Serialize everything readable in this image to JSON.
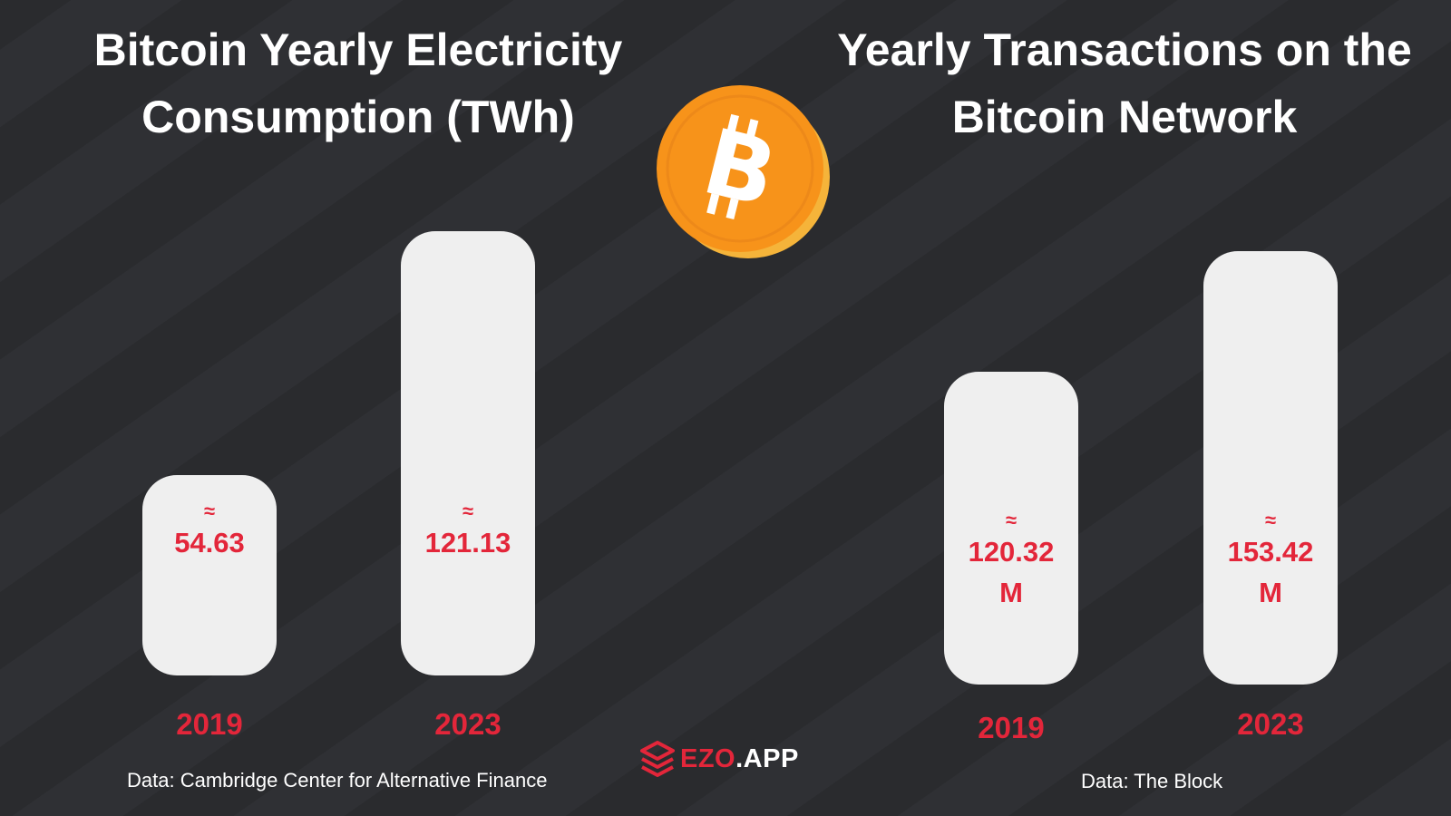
{
  "charts": {
    "left": {
      "title_line1": "Bitcoin Yearly Electricity",
      "title_line2": "Consumption (TWh)",
      "source": "Data: Cambridge Center for Alternative Finance",
      "approx_symbol": "≈",
      "bars": [
        {
          "year": "2019",
          "label": "54.63",
          "value": 54.63
        },
        {
          "year": "2023",
          "label": "121.13",
          "value": 121.13
        }
      ]
    },
    "right": {
      "title_line1": "Yearly Transactions on the",
      "title_line2": "Bitcoin Network",
      "source": "Data: The Block",
      "approx_symbol": "≈",
      "bars": [
        {
          "year": "2019",
          "label_line1": "120.32",
          "label_line2": "M",
          "value": 120.32
        },
        {
          "year": "2023",
          "label_line1": "153.42",
          "label_line2": "M",
          "value": 153.42
        }
      ]
    }
  },
  "logo": {
    "brand": "EZO",
    "tld": ".APP"
  },
  "colors": {
    "background": "#2b2c30",
    "accent_red": "#e3263a",
    "bar_fill": "#efefef",
    "coin_orange": "#f7931a",
    "coin_rim": "#f5b43a"
  },
  "icons": {
    "coin": "bitcoin-coin-icon",
    "logo": "ezo-logo-icon"
  },
  "chart_data": [
    {
      "type": "bar",
      "title": "Bitcoin Yearly Electricity Consumption (TWh)",
      "categories": [
        "2019",
        "2023"
      ],
      "values": [
        54.63,
        121.13
      ],
      "data_labels": [
        "≈ 54.63",
        "≈ 121.13"
      ],
      "xlabel": "",
      "ylabel": "",
      "grid": false,
      "source": "Data: Cambridge Center for Alternative Finance"
    },
    {
      "type": "bar",
      "title": "Yearly Transactions on the Bitcoin Network",
      "categories": [
        "2019",
        "2023"
      ],
      "values": [
        120.32,
        153.42
      ],
      "data_labels": [
        "≈ 120.32 M",
        "≈ 153.42 M"
      ],
      "xlabel": "",
      "ylabel": "",
      "grid": false,
      "source": "Data: The Block"
    }
  ]
}
